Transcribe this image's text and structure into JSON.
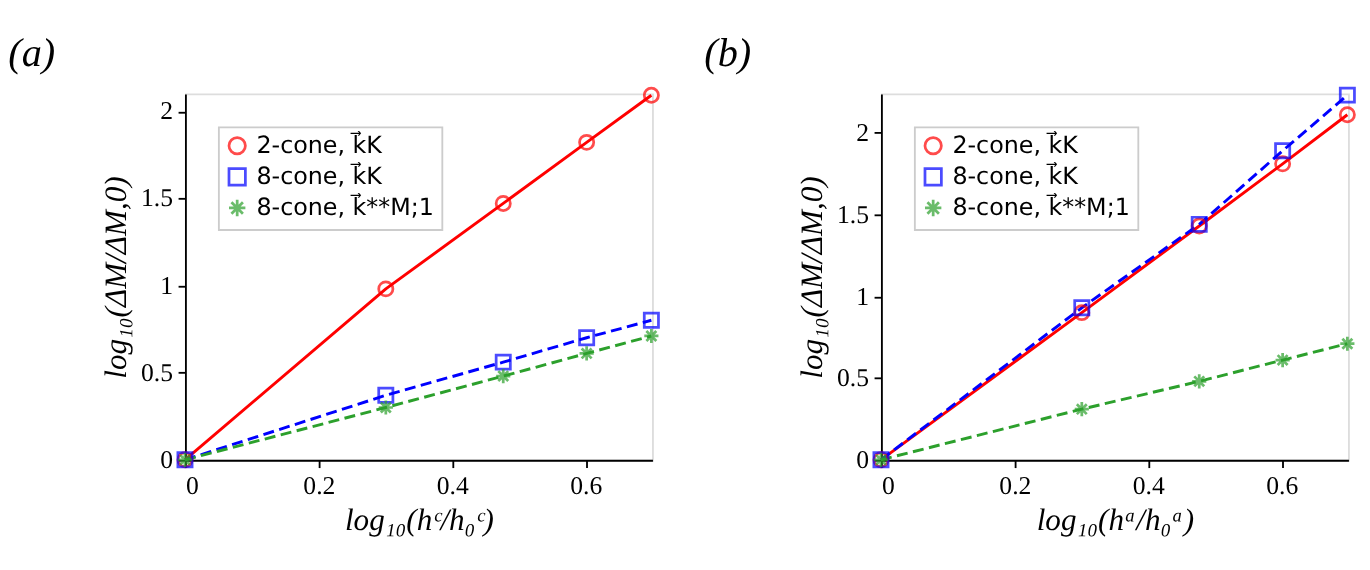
{
  "chart_data": [
    {
      "type": "line",
      "title": "(a)",
      "xlabel": "log₁₀(hᶜ/h₀ᶜ)",
      "ylabel": "log₁₀(ΔM/ΔM,0)",
      "x": [
        0,
        0.301,
        0.477,
        0.602,
        0.699
      ],
      "series": [
        {
          "name": "2-cone, k⃗K",
          "color": "#ff0000",
          "values": [
            0,
            0.98,
            1.47,
            1.82,
            2.09
          ],
          "marker": "circle",
          "line_style": "solid"
        },
        {
          "name": "8-cone, k⃗K",
          "color": "#0000ff",
          "values": [
            0,
            0.37,
            0.56,
            0.7,
            0.8
          ],
          "marker": "square",
          "line_style": "dashed"
        },
        {
          "name": "8-cone, k⃗**M;1",
          "color": "#2ca02c",
          "values": [
            0,
            0.3,
            0.48,
            0.61,
            0.71
          ],
          "marker": "cross",
          "line_style": "dashed"
        }
      ],
      "xlim": [
        0,
        0.7
      ],
      "xticks": [
        0,
        0.2,
        0.4,
        0.6
      ],
      "ylim": [
        0,
        2.1
      ],
      "yticks": [
        0,
        0.5,
        1,
        1.5,
        2
      ],
      "grid": false,
      "legend": "top left"
    },
    {
      "type": "line",
      "title": "(b)",
      "xlabel": "log₁₀(hᵃ/h₀ᵃ)",
      "ylabel": "log₁₀(ΔM/ΔM,0)",
      "x": [
        0,
        0.301,
        0.477,
        0.602,
        0.699
      ],
      "series": [
        {
          "name": "2-cone, k⃗K",
          "color": "#ff0000",
          "values": [
            0,
            0.9,
            1.43,
            1.81,
            2.11
          ],
          "marker": "circle",
          "line_style": "solid"
        },
        {
          "name": "8-cone, k⃗K",
          "color": "#0000ff",
          "values": [
            0,
            0.93,
            1.44,
            1.89,
            2.23
          ],
          "marker": "square",
          "line_style": "dashed"
        },
        {
          "name": "8-cone, k⃗**M;1",
          "color": "#2ca02c",
          "values": [
            0,
            0.31,
            0.48,
            0.61,
            0.71
          ],
          "marker": "cross",
          "line_style": "dashed"
        }
      ],
      "xlim": [
        0,
        0.7
      ],
      "xticks": [
        0,
        0.2,
        0.4,
        0.6
      ],
      "ylim": [
        0,
        2.24
      ],
      "yticks": [
        0,
        0.5,
        1,
        1.5,
        2
      ],
      "grid": false,
      "legend": "top left"
    }
  ]
}
